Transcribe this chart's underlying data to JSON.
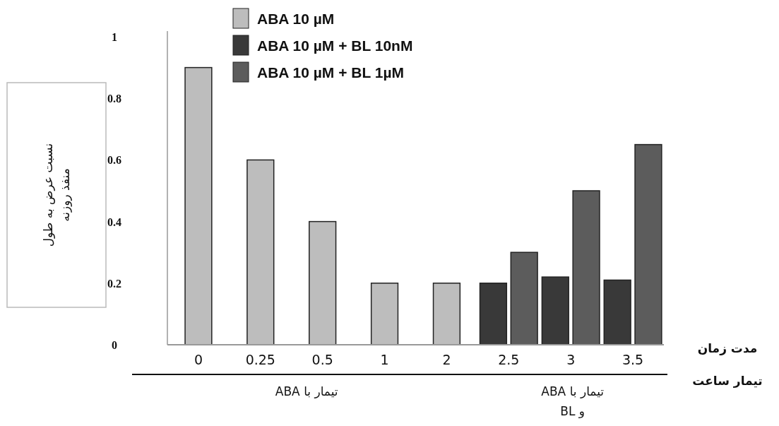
{
  "chart_data": {
    "type": "bar",
    "xlabel": "مدت زمان تیمار ساعت",
    "ylabel": "نسبت عرض به طول منفذ روزنه",
    "categories": [
      "0",
      "0.25",
      "0.5",
      "1",
      "2",
      "2.5",
      "3",
      "3.5"
    ],
    "series": [
      {
        "name": "ABA 10 µM",
        "color": "#bdbdbd",
        "values": [
          0.9,
          0.6,
          0.4,
          0.2,
          0.2,
          null,
          null,
          null
        ]
      },
      {
        "name": "ABA 10 µM + BL 10nM",
        "color": "#393939",
        "values": [
          null,
          null,
          null,
          null,
          null,
          0.2,
          0.22,
          0.21
        ]
      },
      {
        "name": "ABA 10 µM + BL 1µM",
        "color": "#5c5c5c",
        "values": [
          null,
          null,
          null,
          null,
          null,
          0.3,
          0.5,
          0.65
        ]
      }
    ],
    "ylim": [
      0,
      1
    ],
    "yticks": [
      0,
      0.2,
      0.4,
      0.6,
      0.8,
      1
    ],
    "grid": false,
    "legend": "top",
    "annotations": [
      "تیمار با ABA",
      "تیمار با ABA و BL"
    ]
  }
}
